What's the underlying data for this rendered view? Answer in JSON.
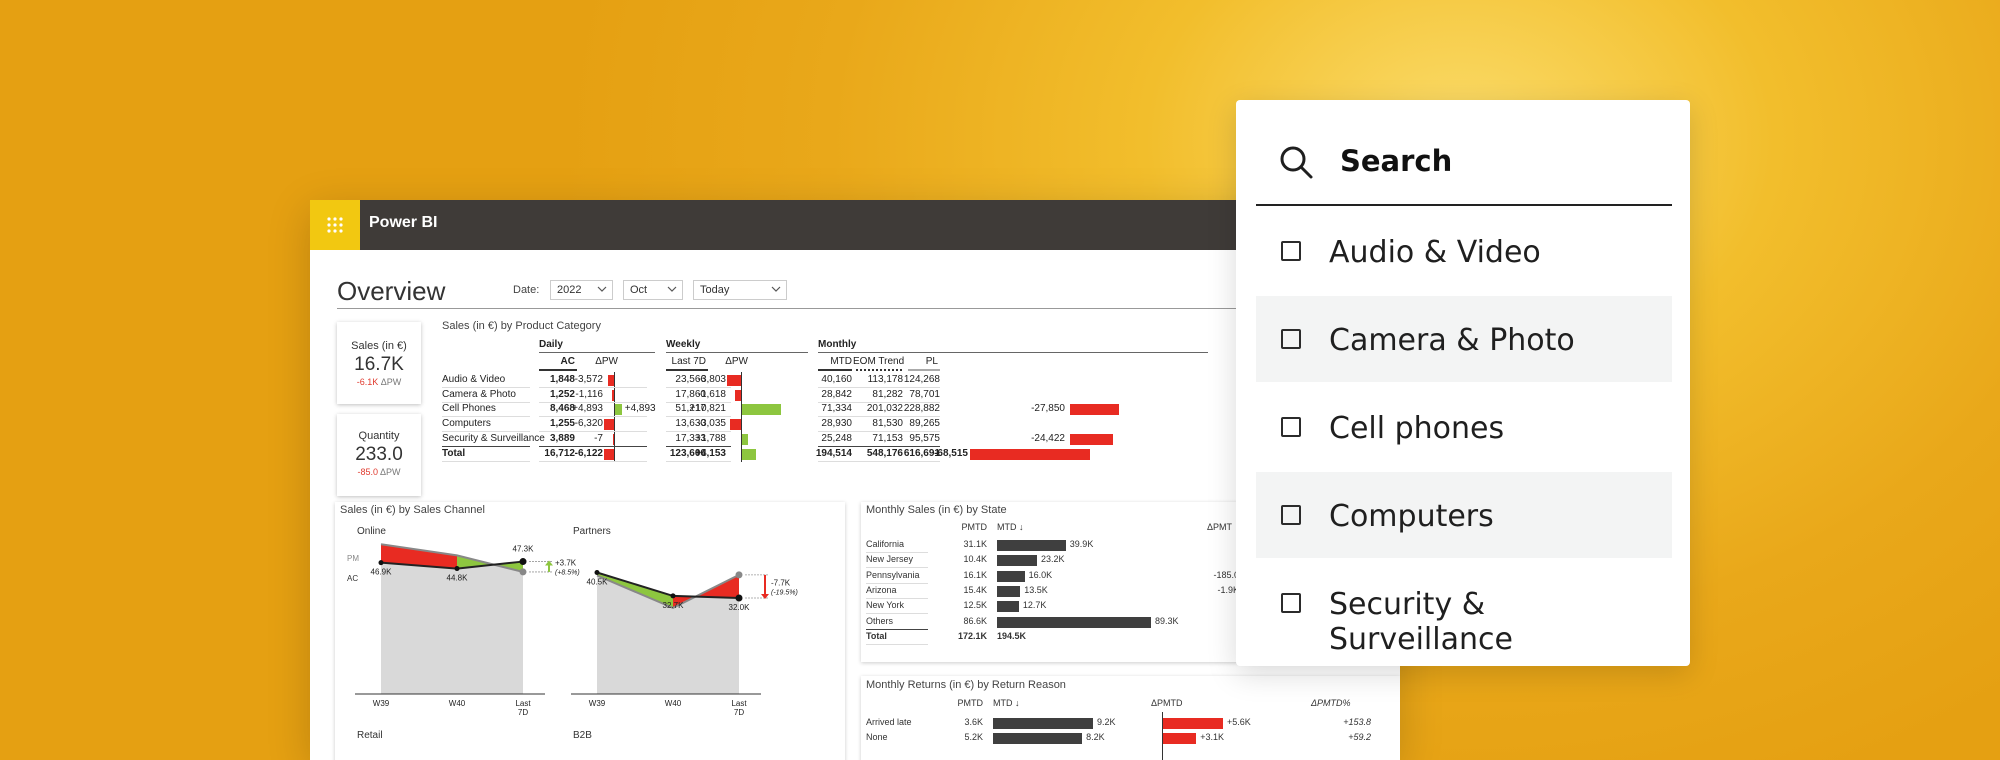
{
  "app": {
    "name": "Power BI",
    "accent": "#f2c811",
    "topbar": "#3f3b38"
  },
  "report": {
    "title": "Overview",
    "date_label": "Date:",
    "filters": [
      {
        "value": "2022"
      },
      {
        "value": "Oct"
      },
      {
        "value": "Today"
      }
    ]
  },
  "kpis": [
    {
      "title": "Sales (in €)",
      "value": "16.7K",
      "delta": "-6.1K",
      "delta_unit": "ΔPW"
    },
    {
      "title": "Quantity",
      "value": "233.0",
      "delta": "-85.0",
      "delta_unit": "ΔPW"
    }
  ],
  "category_table": {
    "title": "Sales (in €) by Product Category",
    "groups": [
      "Daily",
      "Weekly",
      "Monthly"
    ],
    "columns": [
      "AC",
      "ΔPW",
      "Last 7D",
      "ΔPW",
      "MTD",
      "EOM Trend",
      "PL"
    ],
    "rows": [
      {
        "name": "Audio & Video",
        "ac": "1,848",
        "d_pw": "-3,572",
        "d_pw_v": -3572,
        "w_last": "23,566",
        "w_pw": "-3,803",
        "w_pw_v": -3803,
        "mtd": "40,160",
        "eom": "113,178",
        "pl": "124,268",
        "m_delta": "",
        "m_delta_v": 0
      },
      {
        "name": "Camera & Photo",
        "ac": "1,252",
        "d_pw": "-1,116",
        "d_pw_v": -1116,
        "w_last": "17,860",
        "w_pw": "-1,618",
        "w_pw_v": -1618,
        "mtd": "28,842",
        "eom": "81,282",
        "pl": "78,701",
        "m_delta": "",
        "m_delta_v": 0
      },
      {
        "name": "Cell Phones",
        "ac": "8,468",
        "d_pw": "+4,893",
        "d_pw_v": 4893,
        "w_last": "51,217",
        "w_pw": "+10,821",
        "w_pw_v": 10821,
        "mtd": "71,334",
        "eom": "201,032",
        "pl": "228,882",
        "m_delta": "-27,850",
        "m_delta_v": -27850
      },
      {
        "name": "Computers",
        "ac": "1,255",
        "d_pw": "-6,320",
        "d_pw_v": -6320,
        "w_last": "13,630",
        "w_pw": "-3,035",
        "w_pw_v": -3035,
        "mtd": "28,930",
        "eom": "81,530",
        "pl": "89,265",
        "m_delta": "",
        "m_delta_v": 0
      },
      {
        "name": "Security & Surveillance",
        "ac": "3,889",
        "d_pw": "-7",
        "d_pw_v": -7,
        "w_last": "17,333",
        "w_pw": "+1,788",
        "w_pw_v": 1788,
        "mtd": "25,248",
        "eom": "71,153",
        "pl": "95,575",
        "m_delta": "-24,422",
        "m_delta_v": -24422
      }
    ],
    "total": {
      "name": "Total",
      "ac": "16,712",
      "d_pw": "-6,122",
      "d_pw_v": -6122,
      "w_last": "123,606",
      "w_pw": "+4,153",
      "w_pw_v": 4153,
      "mtd": "194,514",
      "eom": "548,176",
      "pl": "616,691",
      "m_delta": "-68,515",
      "m_delta_v": -68515
    }
  },
  "channel_panel": {
    "title": "Sales (in €) by Sales Channel",
    "online": {
      "title": "Online",
      "pm_label": "PM",
      "ac_label": "AC",
      "x": [
        "W39",
        "W40",
        "Last 7D"
      ],
      "ac": [
        46.9,
        44.8,
        47.3
      ],
      "pm": [
        53.5,
        49.5,
        43.6
      ],
      "labels": [
        "46.9K",
        "44.8K",
        "47.3K"
      ],
      "delta": "+3.7K",
      "delta_pct": "(+8.5%)"
    },
    "partners": {
      "title": "Partners",
      "x": [
        "W39",
        "W40",
        "Last 7D"
      ],
      "ac": [
        40.5,
        32.7,
        32.0
      ],
      "pm": [
        39.5,
        28.7,
        39.7
      ],
      "labels": [
        "40.5K",
        "32.7K",
        "32.0K"
      ],
      "delta": "-7.7K",
      "delta_pct": "(-19.5%)"
    },
    "retail_title": "Retail",
    "b2b_title": "B2B"
  },
  "state_panel": {
    "title": "Monthly Sales (in €) by State",
    "col_pmtd": "PMTD",
    "col_mtd": "MTD ↓",
    "col_dpmtd": "ΔPMT",
    "rows": [
      {
        "name": "California",
        "pmtd": "31.1K",
        "mtd": "39.9K",
        "mtd_v": 39.9,
        "dpmtd": ""
      },
      {
        "name": "New Jersey",
        "pmtd": "10.4K",
        "mtd": "23.2K",
        "mtd_v": 23.2,
        "dpmtd": ""
      },
      {
        "name": "Pennsylvania",
        "pmtd": "16.1K",
        "mtd": "16.0K",
        "mtd_v": 16.0,
        "dpmtd": "-185.0"
      },
      {
        "name": "Arizona",
        "pmtd": "15.4K",
        "mtd": "13.5K",
        "mtd_v": 13.5,
        "dpmtd": "-1.9K"
      },
      {
        "name": "New York",
        "pmtd": "12.5K",
        "mtd": "12.7K",
        "mtd_v": 12.7,
        "dpmtd": ""
      },
      {
        "name": "Others",
        "pmtd": "86.6K",
        "mtd": "89.3K",
        "mtd_v": 89.3,
        "dpmtd": ""
      }
    ],
    "total": {
      "name": "Total",
      "pmtd": "172.1K",
      "mtd": "194.5K"
    }
  },
  "returns_panel": {
    "title": "Monthly Returns (in €) by Return Reason",
    "col_pmtd": "PMTD",
    "col_mtd": "MTD ↓",
    "col_dpmtd": "ΔPMTD",
    "col_dpct": "ΔPMTD%",
    "rows": [
      {
        "name": "Arrived late",
        "pmtd": "3.6K",
        "mtd": "9.2K",
        "mtd_v": 9.2,
        "d": "+5.6K",
        "d_v": 5.6,
        "pct": "+153.8"
      },
      {
        "name": "None",
        "pmtd": "5.2K",
        "mtd": "8.2K",
        "mtd_v": 8.2,
        "d": "+3.1K",
        "d_v": 3.1,
        "pct": "+59.2"
      }
    ]
  },
  "search_panel": {
    "placeholder": "Search",
    "items": [
      {
        "label": "Audio & Video",
        "checked": false
      },
      {
        "label": "Camera & Photo",
        "checked": false
      },
      {
        "label": "Cell phones",
        "checked": false
      },
      {
        "label": "Computers",
        "checked": false
      },
      {
        "label": "Security & Surveillance",
        "checked": false
      }
    ]
  },
  "colors": {
    "negative": "#e82b22",
    "positive": "#8dc63f",
    "bar": "#3f3f3f",
    "area": "#d9d9d9"
  }
}
